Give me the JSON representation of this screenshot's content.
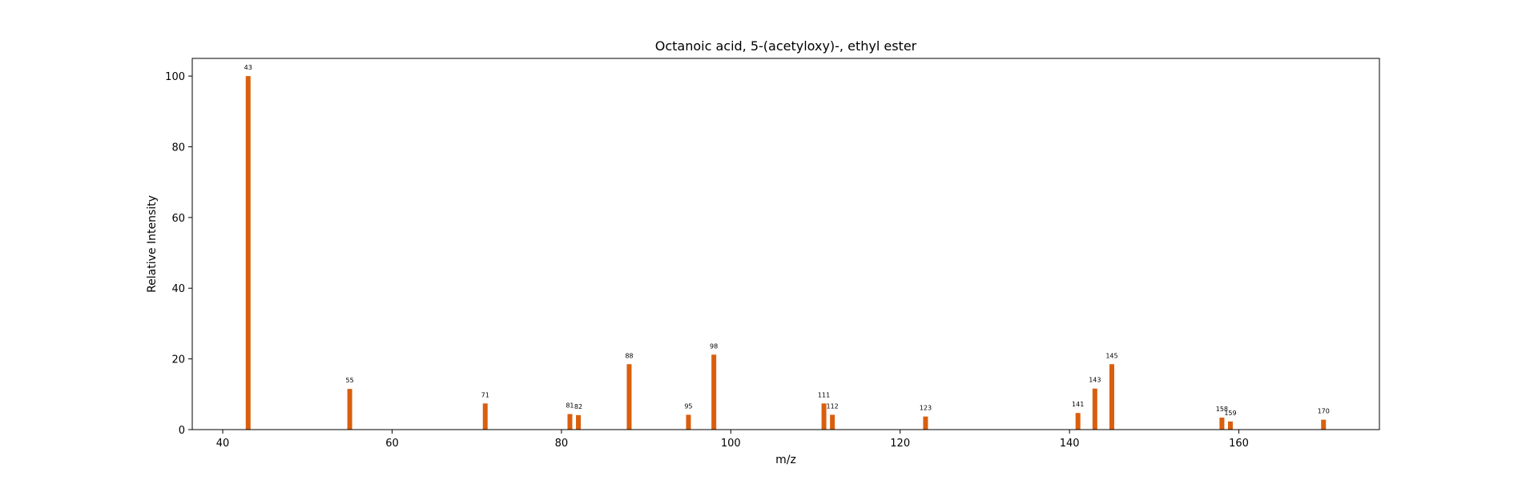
{
  "chart_data": {
    "type": "bar",
    "title": "Octanoic acid, 5-(acetyloxy)-, ethyl ester",
    "xlabel": "m/z",
    "ylabel": "Relative Intensity",
    "xlim": [
      36.4,
      176.6
    ],
    "ylim": [
      0,
      105
    ],
    "x_ticks": [
      40,
      60,
      80,
      100,
      120,
      140,
      160
    ],
    "y_ticks": [
      0,
      20,
      40,
      60,
      80,
      100
    ],
    "bar_color": "#d95f0e",
    "grid": false,
    "legend": "none",
    "x": [
      43,
      55,
      71,
      81,
      82,
      88,
      95,
      98,
      111,
      112,
      123,
      141,
      143,
      145,
      158,
      159,
      170
    ],
    "values": [
      100,
      11.5,
      7.4,
      4.4,
      4.1,
      18.5,
      4.2,
      21.2,
      7.4,
      4.2,
      3.7,
      4.7,
      11.6,
      18.5,
      3.4,
      2.3,
      2.8
    ],
    "labels": [
      "43",
      "55",
      "71",
      "81",
      "82",
      "88",
      "95",
      "98",
      "111",
      "112",
      "123",
      "141",
      "143",
      "145",
      "158",
      "159",
      "170"
    ]
  }
}
